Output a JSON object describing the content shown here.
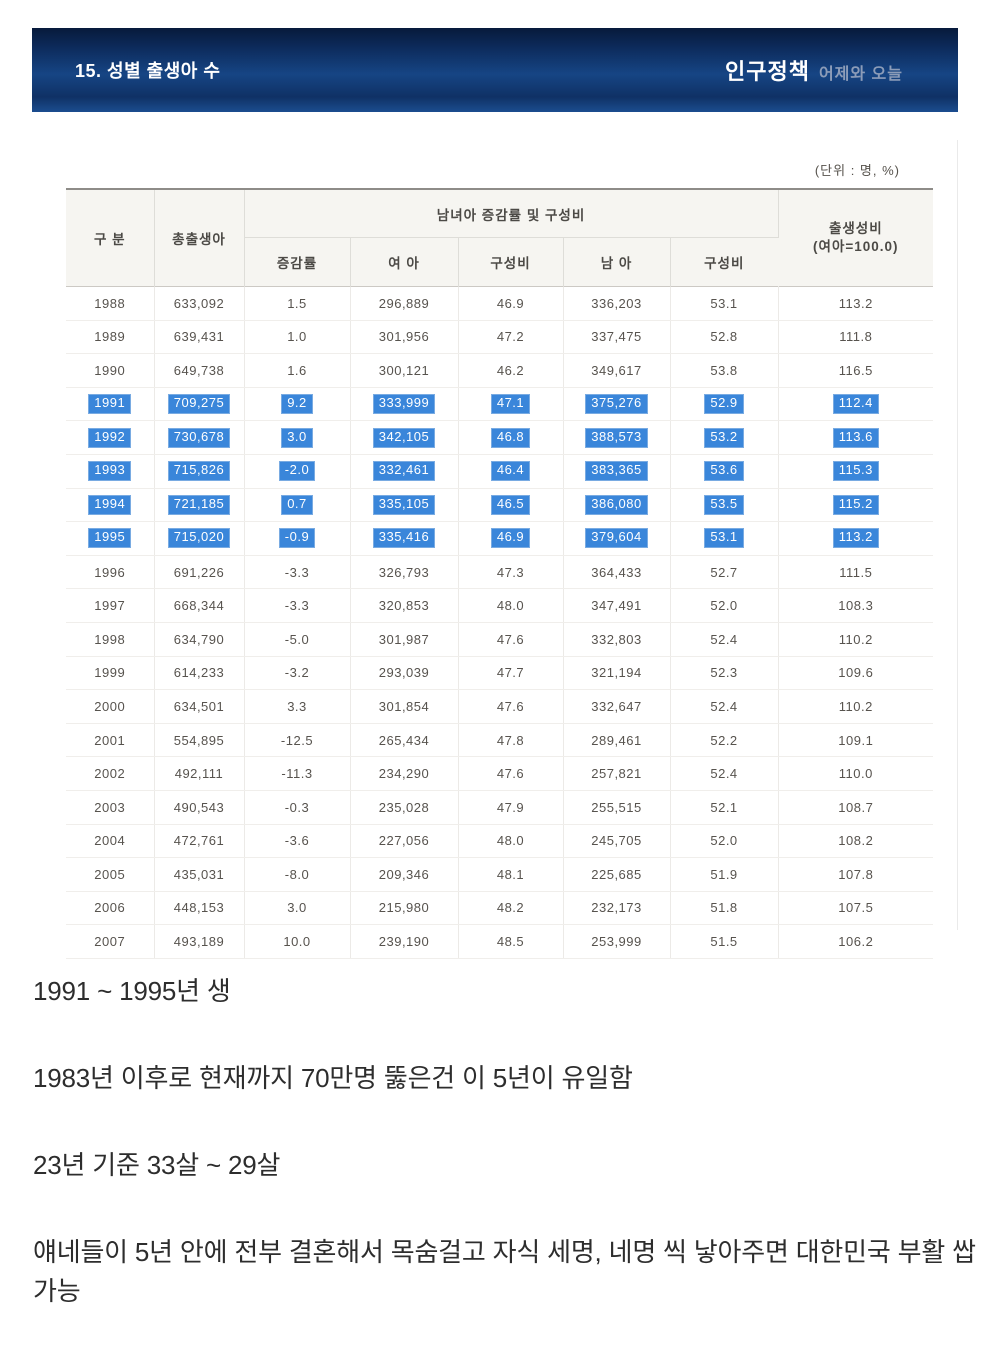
{
  "header": {
    "title": "15. 성별 출생아 수",
    "brand": "인구정책",
    "brand_sub": "어제와 오늘"
  },
  "table": {
    "unit_note": "(단위 : 명, %)",
    "columns": {
      "category": "구 분",
      "total": "총출생아",
      "group": "남녀아 증감률 및 구성비",
      "change_rate": "증감률",
      "female": "여 아",
      "female_share": "구성비",
      "male": "남 아",
      "male_share": "구성비",
      "sex_ratio_line1": "출생성비",
      "sex_ratio_line2": "(여아=100.0)"
    },
    "rows": [
      {
        "year": "1988",
        "cells": [
          "633,092",
          "1.5",
          "296,889",
          "46.9",
          "336,203",
          "53.1",
          "113.2"
        ],
        "highlight": false
      },
      {
        "year": "1989",
        "cells": [
          "639,431",
          "1.0",
          "301,956",
          "47.2",
          "337,475",
          "52.8",
          "111.8"
        ],
        "highlight": false
      },
      {
        "year": "1990",
        "cells": [
          "649,738",
          "1.6",
          "300,121",
          "46.2",
          "349,617",
          "53.8",
          "116.5"
        ],
        "highlight": false
      },
      {
        "year": "1991",
        "cells": [
          "709,275",
          "9.2",
          "333,999",
          "47.1",
          "375,276",
          "52.9",
          "112.4"
        ],
        "highlight": true
      },
      {
        "year": "1992",
        "cells": [
          "730,678",
          "3.0",
          "342,105",
          "46.8",
          "388,573",
          "53.2",
          "113.6"
        ],
        "highlight": true
      },
      {
        "year": "1993",
        "cells": [
          "715,826",
          "-2.0",
          "332,461",
          "46.4",
          "383,365",
          "53.6",
          "115.3"
        ],
        "highlight": true
      },
      {
        "year": "1994",
        "cells": [
          "721,185",
          "0.7",
          "335,105",
          "46.5",
          "386,080",
          "53.5",
          "115.2"
        ],
        "highlight": true
      },
      {
        "year": "1995",
        "cells": [
          "715,020",
          "-0.9",
          "335,416",
          "46.9",
          "379,604",
          "53.1",
          "113.2"
        ],
        "highlight": true
      },
      {
        "year": "1996",
        "cells": [
          "691,226",
          "-3.3",
          "326,793",
          "47.3",
          "364,433",
          "52.7",
          "111.5"
        ],
        "highlight": false
      },
      {
        "year": "1997",
        "cells": [
          "668,344",
          "-3.3",
          "320,853",
          "48.0",
          "347,491",
          "52.0",
          "108.3"
        ],
        "highlight": false
      },
      {
        "year": "1998",
        "cells": [
          "634,790",
          "-5.0",
          "301,987",
          "47.6",
          "332,803",
          "52.4",
          "110.2"
        ],
        "highlight": false
      },
      {
        "year": "1999",
        "cells": [
          "614,233",
          "-3.2",
          "293,039",
          "47.7",
          "321,194",
          "52.3",
          "109.6"
        ],
        "highlight": false
      },
      {
        "year": "2000",
        "cells": [
          "634,501",
          "3.3",
          "301,854",
          "47.6",
          "332,647",
          "52.4",
          "110.2"
        ],
        "highlight": false
      },
      {
        "year": "2001",
        "cells": [
          "554,895",
          "-12.5",
          "265,434",
          "47.8",
          "289,461",
          "52.2",
          "109.1"
        ],
        "highlight": false
      },
      {
        "year": "2002",
        "cells": [
          "492,111",
          "-11.3",
          "234,290",
          "47.6",
          "257,821",
          "52.4",
          "110.0"
        ],
        "highlight": false
      },
      {
        "year": "2003",
        "cells": [
          "490,543",
          "-0.3",
          "235,028",
          "47.9",
          "255,515",
          "52.1",
          "108.7"
        ],
        "highlight": false
      },
      {
        "year": "2004",
        "cells": [
          "472,761",
          "-3.6",
          "227,056",
          "48.0",
          "245,705",
          "52.0",
          "108.2"
        ],
        "highlight": false
      },
      {
        "year": "2005",
        "cells": [
          "435,031",
          "-8.0",
          "209,346",
          "48.1",
          "225,685",
          "51.9",
          "107.8"
        ],
        "highlight": false
      },
      {
        "year": "2006",
        "cells": [
          "448,153",
          "3.0",
          "215,980",
          "48.2",
          "232,173",
          "51.8",
          "107.5"
        ],
        "highlight": false
      },
      {
        "year": "2007",
        "cells": [
          "493,189",
          "10.0",
          "239,190",
          "48.5",
          "253,999",
          "51.5",
          "106.2"
        ],
        "highlight": false
      }
    ]
  },
  "comments": [
    "1991 ~ 1995년 생",
    "1983년 이후로 현재까지 70만명 뚫은건 이 5년이 유일함",
    "23년 기준 33살 ~ 29살",
    "얘네들이 5년 안에 전부 결혼해서 목숨걸고 자식 세명, 네명 씩 낳아주면 대한민국 부활 쌉가능"
  ],
  "colors": {
    "highlight_blue": "#3a86da",
    "bar_navy_dark": "#071a3b",
    "bar_navy_light": "#164584",
    "header_bg": "#f6f5f1"
  }
}
